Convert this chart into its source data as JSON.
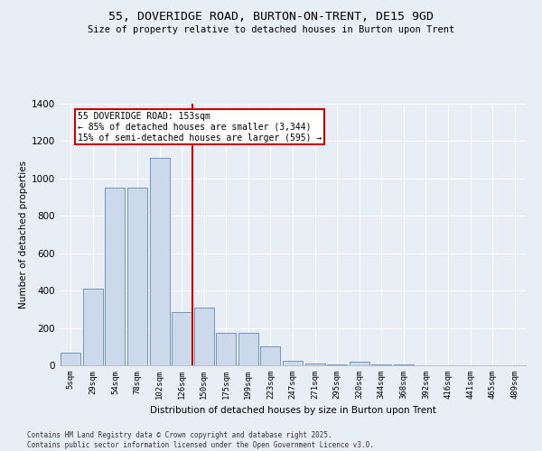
{
  "title1": "55, DOVERIDGE ROAD, BURTON-ON-TRENT, DE15 9GD",
  "title2": "Size of property relative to detached houses in Burton upon Trent",
  "xlabel": "Distribution of detached houses by size in Burton upon Trent",
  "ylabel": "Number of detached properties",
  "categories": [
    "5sqm",
    "29sqm",
    "54sqm",
    "78sqm",
    "102sqm",
    "126sqm",
    "150sqm",
    "175sqm",
    "199sqm",
    "223sqm",
    "247sqm",
    "271sqm",
    "295sqm",
    "320sqm",
    "344sqm",
    "368sqm",
    "392sqm",
    "416sqm",
    "441sqm",
    "465sqm",
    "489sqm"
  ],
  "values": [
    70,
    410,
    950,
    950,
    1110,
    285,
    310,
    175,
    175,
    100,
    25,
    10,
    5,
    20,
    5,
    5,
    2,
    2,
    0,
    2,
    0
  ],
  "bar_color": "#ccd9ea",
  "bar_edge_color": "#7096b8",
  "vline_color": "#cc0000",
  "annotation_title": "55 DOVERIDGE ROAD: 153sqm",
  "annotation_line1": "← 85% of detached houses are smaller (3,344)",
  "annotation_line2": "15% of semi-detached houses are larger (595) →",
  "annotation_box_color": "#ffffff",
  "annotation_border_color": "#cc0000",
  "bg_color": "#e8eef5",
  "ylim": [
    0,
    1400
  ],
  "yticks": [
    0,
    200,
    400,
    600,
    800,
    1000,
    1200,
    1400
  ],
  "footer1": "Contains HM Land Registry data © Crown copyright and database right 2025.",
  "footer2": "Contains public sector information licensed under the Open Government Licence v3.0."
}
